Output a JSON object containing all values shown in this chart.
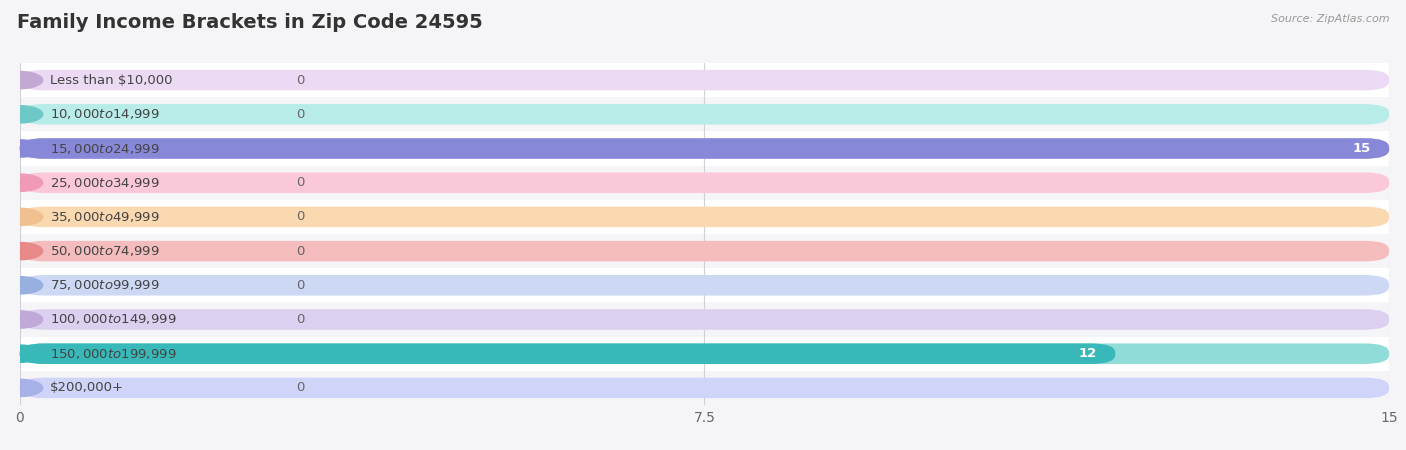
{
  "title": "Family Income Brackets in Zip Code 24595",
  "source": "Source: ZipAtlas.com",
  "categories": [
    "Less than $10,000",
    "$10,000 to $14,999",
    "$15,000 to $24,999",
    "$25,000 to $34,999",
    "$35,000 to $49,999",
    "$50,000 to $74,999",
    "$75,000 to $99,999",
    "$100,000 to $149,999",
    "$150,000 to $199,999",
    "$200,000+"
  ],
  "values": [
    0,
    0,
    15,
    0,
    0,
    0,
    0,
    0,
    12,
    0
  ],
  "bar_colors": [
    "#c4a8d4",
    "#6ec8c8",
    "#8888d8",
    "#f09ab8",
    "#f0c090",
    "#e88888",
    "#98b0e0",
    "#c0a8d8",
    "#38b8b8",
    "#a8b0e8"
  ],
  "label_bg_colors": [
    "#ecdaf4",
    "#b8ece8",
    "#c8c8f0",
    "#fac8d8",
    "#fad8b0",
    "#f4bcbc",
    "#ccd8f4",
    "#dcd0f0",
    "#90dcd8",
    "#d0d4f8"
  ],
  "row_bg_colors": [
    "#ffffff",
    "#f5f5f8"
  ],
  "xlim": [
    0,
    15
  ],
  "xticks": [
    0,
    7.5,
    15
  ],
  "background_color": "#f5f5f8",
  "title_fontsize": 14,
  "label_fontsize": 9.5,
  "value_fontsize": 9.5
}
